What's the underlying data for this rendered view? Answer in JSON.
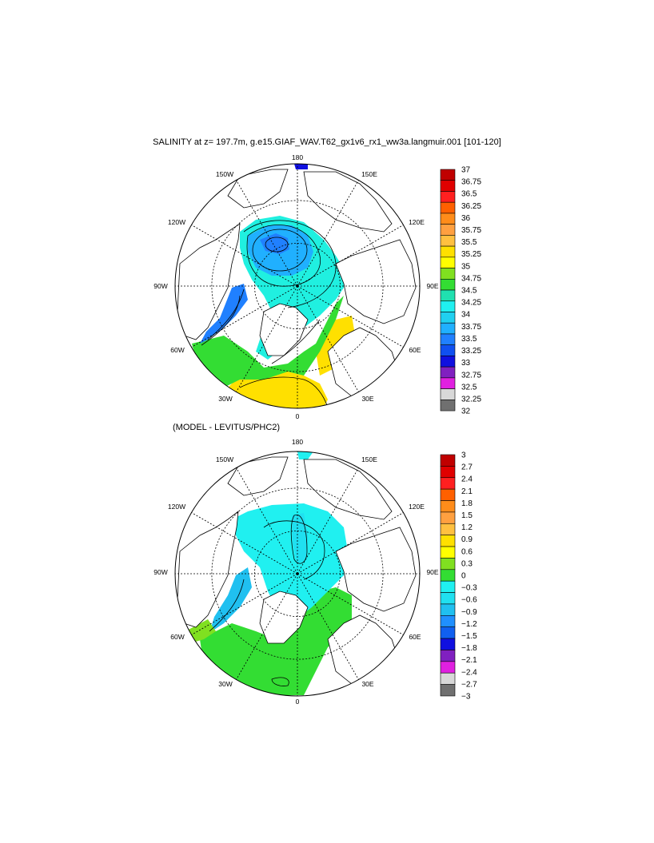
{
  "title": "SALINITY at z= 197.7m, g.e15.GIAF_WAV.T62_gx1v6_rx1_ww3a.langmuir.001 [101-120]",
  "subtitle": "(MODEL - LEVITUS/PHC2)",
  "longitude_labels": {
    "n180": "180",
    "e150": "150E",
    "e120": "120E",
    "e90": "90E",
    "e60": "60E",
    "e30": "30E",
    "s0": "0",
    "w30": "30W",
    "w60": "60W",
    "w90": "90W",
    "w120": "120W",
    "w150": "150W"
  },
  "colorbar_top": {
    "labels": [
      "37",
      "36.75",
      "36.5",
      "36.25",
      "36",
      "35.75",
      "35.5",
      "35.25",
      "35",
      "34.75",
      "34.5",
      "34.25",
      "34",
      "33.75",
      "33.5",
      "33.25",
      "33",
      "32.75",
      "32.5",
      "32.25",
      "32"
    ],
    "colors": [
      "#c00000",
      "#e00000",
      "#ff2020",
      "#ff6000",
      "#ff8c1a",
      "#ffa040",
      "#ffc040",
      "#ffe000",
      "#ffff00",
      "#80e020",
      "#33dd33",
      "#20e0b0",
      "#20f0f0",
      "#20d0f0",
      "#20b0ff",
      "#2080ff",
      "#1050f0",
      "#1010e0",
      "#8020c0",
      "#e020e0",
      "#d8d8d8",
      "#707070"
    ]
  },
  "colorbar_bottom": {
    "labels": [
      "3",
      "2.7",
      "2.4",
      "2.1",
      "1.8",
      "1.5",
      "1.2",
      "0.9",
      "0.6",
      "0.3",
      "0",
      "−0.3",
      "−0.6",
      "−0.9",
      "−1.2",
      "−1.5",
      "−1.8",
      "−2.1",
      "−2.4",
      "−2.7",
      "−3"
    ],
    "colors": [
      "#c00000",
      "#e00000",
      "#ff2020",
      "#ff6000",
      "#ff8c1a",
      "#ffa040",
      "#ffc040",
      "#ffe000",
      "#ffff00",
      "#80e020",
      "#33dd33",
      "#20f0f0",
      "#20e0f0",
      "#20c0f0",
      "#2090ff",
      "#1060f0",
      "#1010e0",
      "#8020c0",
      "#e020e0",
      "#d8d8d8",
      "#707070"
    ]
  }
}
